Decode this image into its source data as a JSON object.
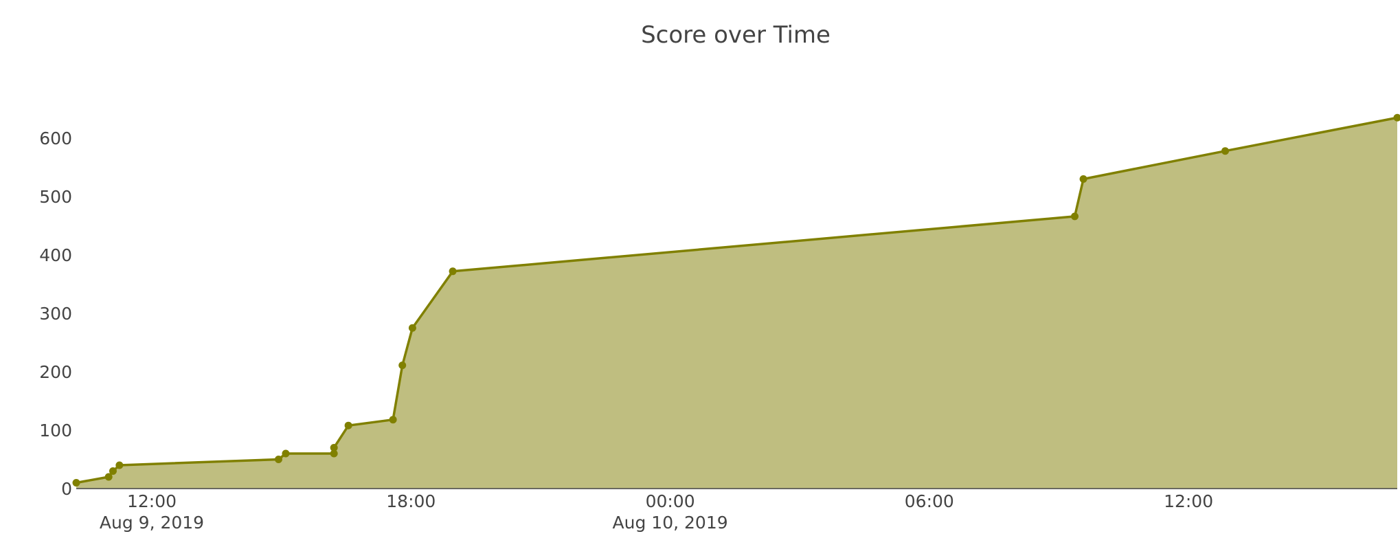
{
  "chart_data": {
    "type": "area",
    "title": "Score over Time",
    "xlabel": "",
    "ylabel": "",
    "xlim": [
      "2019-08-09 10:15",
      "2019-08-10 16:50"
    ],
    "ylim": [
      0,
      660
    ],
    "grid": false,
    "legend": "none",
    "colors": {
      "line": "#808000",
      "fill": "#BFBE80",
      "axis": "#444444",
      "text": "#444444"
    },
    "x_ticks": [
      {
        "value": "2019-08-09 12:00",
        "label": "12:00",
        "sublabel": "Aug 9, 2019"
      },
      {
        "value": "2019-08-09 18:00",
        "label": "18:00",
        "sublabel": ""
      },
      {
        "value": "2019-08-10 00:00",
        "label": "00:00",
        "sublabel": "Aug 10, 2019"
      },
      {
        "value": "2019-08-10 06:00",
        "label": "06:00",
        "sublabel": ""
      },
      {
        "value": "2019-08-10 12:00",
        "label": "12:00",
        "sublabel": ""
      }
    ],
    "y_ticks": [
      {
        "value": 0,
        "label": "0"
      },
      {
        "value": 100,
        "label": "100"
      },
      {
        "value": 200,
        "label": "200"
      },
      {
        "value": 300,
        "label": "300"
      },
      {
        "value": 400,
        "label": "400"
      },
      {
        "value": 500,
        "label": "500"
      },
      {
        "value": 600,
        "label": "600"
      }
    ],
    "series": [
      {
        "points": [
          {
            "x": "2019-08-09 10:15",
            "y": 10
          },
          {
            "x": "2019-08-09 11:00",
            "y": 20
          },
          {
            "x": "2019-08-09 11:06",
            "y": 30
          },
          {
            "x": "2019-08-09 11:15",
            "y": 40
          },
          {
            "x": "2019-08-09 14:56",
            "y": 50
          },
          {
            "x": "2019-08-09 15:06",
            "y": 60
          },
          {
            "x": "2019-08-09 16:13",
            "y": 60
          },
          {
            "x": "2019-08-09 16:13",
            "y": 70
          },
          {
            "x": "2019-08-09 16:33",
            "y": 108
          },
          {
            "x": "2019-08-09 17:35",
            "y": 118
          },
          {
            "x": "2019-08-09 17:48",
            "y": 211
          },
          {
            "x": "2019-08-09 18:02",
            "y": 275
          },
          {
            "x": "2019-08-09 18:58",
            "y": 372
          },
          {
            "x": "2019-08-10 09:22",
            "y": 466
          },
          {
            "x": "2019-08-10 09:34",
            "y": 530
          },
          {
            "x": "2019-08-10 12:51",
            "y": 578
          },
          {
            "x": "2019-08-10 16:50",
            "y": 635
          }
        ]
      }
    ]
  }
}
